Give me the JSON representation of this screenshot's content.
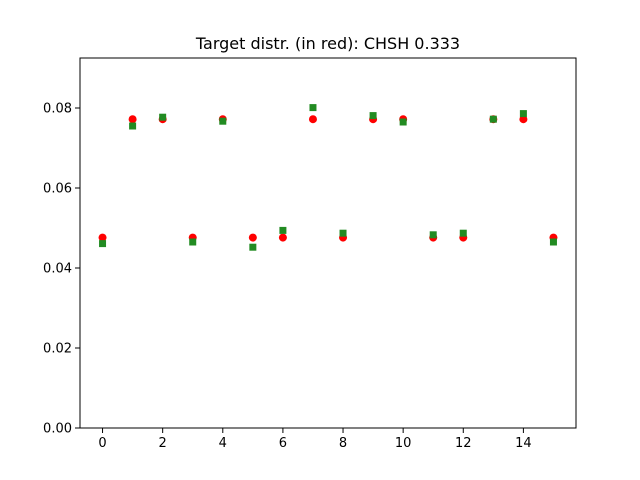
{
  "chart_data": {
    "type": "scatter",
    "title": "Target distr. (in red): CHSH 0.333",
    "xlabel": "",
    "ylabel": "",
    "xlim": [
      -0.75,
      15.75
    ],
    "ylim": [
      0,
      0.0925
    ],
    "xticks": [
      0,
      2,
      4,
      6,
      8,
      10,
      12,
      14
    ],
    "yticks": [
      0.0,
      0.02,
      0.04,
      0.06,
      0.08
    ],
    "ytick_labels": [
      "0.00",
      "0.02",
      "0.04",
      "0.06",
      "0.08"
    ],
    "grid": false,
    "series": [
      {
        "marker": "circle",
        "color": "#ff0000",
        "x": [
          0,
          1,
          2,
          3,
          4,
          5,
          6,
          7,
          8,
          9,
          10,
          11,
          12,
          13,
          14,
          15
        ],
        "y": [
          0.0476,
          0.0772,
          0.0772,
          0.0476,
          0.0772,
          0.0476,
          0.0476,
          0.0772,
          0.0476,
          0.0772,
          0.0772,
          0.0476,
          0.0476,
          0.0772,
          0.0772,
          0.0476
        ]
      },
      {
        "marker": "square",
        "color": "#228b22",
        "x": [
          0,
          1,
          2,
          3,
          4,
          5,
          6,
          7,
          8,
          9,
          10,
          11,
          12,
          13,
          14,
          15
        ],
        "y": [
          0.0461,
          0.0755,
          0.0777,
          0.0465,
          0.0767,
          0.0452,
          0.0494,
          0.0801,
          0.0487,
          0.0781,
          0.0765,
          0.0483,
          0.0487,
          0.0772,
          0.0786,
          0.0465
        ]
      }
    ]
  }
}
